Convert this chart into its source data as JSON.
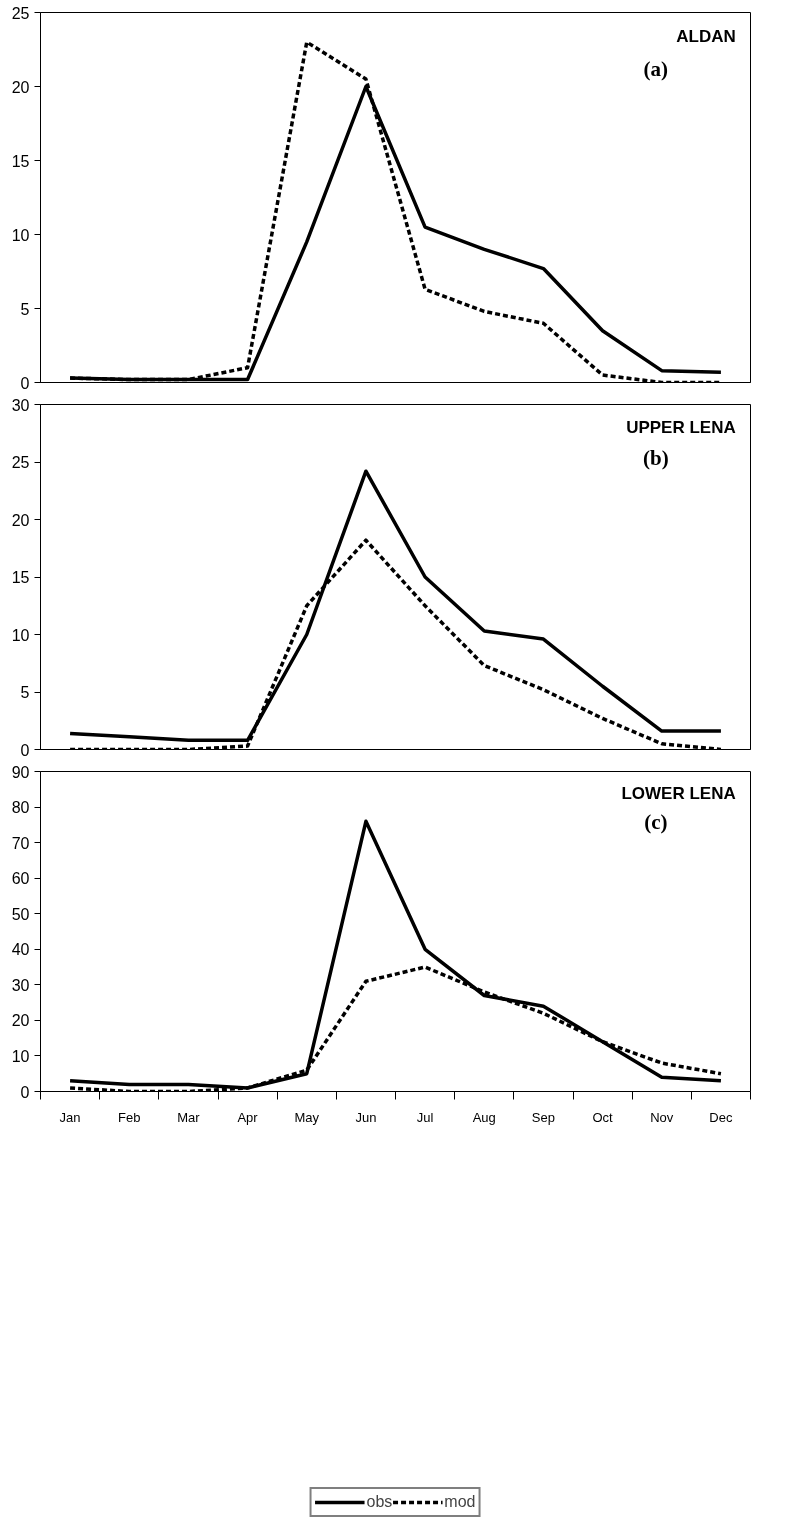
{
  "chart_data": [
    {
      "type": "line",
      "annotations": [
        "ALDAN",
        "(a)"
      ],
      "categories": [
        null,
        null,
        null,
        null,
        null,
        null,
        null,
        null,
        null,
        null,
        null,
        null
      ],
      "ylim": [
        0,
        25
      ],
      "yticks": [
        0,
        5,
        10,
        15,
        20,
        25
      ],
      "tick_labels": "y",
      "series": [
        {
          "color": "#000000",
          "line_style": "solid",
          "values": [
            0.3,
            0.2,
            0.2,
            0.2,
            9.5,
            20,
            10.5,
            9,
            7.7,
            3.5,
            0.8,
            0.7
          ]
        },
        {
          "color": "#000000",
          "line_style": "dashed",
          "values": [
            0.3,
            0.2,
            0.2,
            1,
            23,
            20.5,
            6.3,
            4.8,
            4,
            0.5,
            0,
            0
          ]
        }
      ]
    },
    {
      "type": "line",
      "annotations": [
        "UPPER LENA",
        "(b)"
      ],
      "categories": [
        null,
        null,
        null,
        null,
        null,
        null,
        null,
        null,
        null,
        null,
        null,
        null
      ],
      "ylim": [
        0,
        30
      ],
      "yticks": [
        0,
        5,
        10,
        15,
        20,
        25,
        30
      ],
      "tick_labels": "y",
      "series": [
        {
          "color": "#000000",
          "line_style": "solid",
          "values": [
            1.4,
            1.1,
            0.8,
            0.8,
            10,
            24.2,
            15,
            10.3,
            9.6,
            5.5,
            1.6,
            1.6
          ]
        },
        {
          "color": "#000000",
          "line_style": "dashed",
          "values": [
            0,
            0,
            0,
            0.3,
            12.5,
            18.2,
            12.5,
            7.3,
            5.2,
            2.7,
            0.5,
            0
          ]
        }
      ]
    },
    {
      "type": "line",
      "annotations": [
        "LOWER LENA",
        "(c)"
      ],
      "categories": [
        "Jan",
        "Feb",
        "Mar",
        "Apr",
        "May",
        "Jun",
        "Jul",
        "Aug",
        "Sep",
        "Oct",
        "Nov",
        "Dec"
      ],
      "ylim": [
        0,
        90
      ],
      "yticks": [
        0,
        10,
        20,
        30,
        40,
        50,
        60,
        70,
        80,
        90
      ],
      "legend": "bottom",
      "series": [
        {
          "name": "obs",
          "color": "#000000",
          "line_style": "solid",
          "values": [
            3,
            2,
            2,
            1,
            5,
            76,
            40,
            27,
            24,
            14,
            4,
            3
          ]
        },
        {
          "name": "mod",
          "color": "#000000",
          "line_style": "dashed",
          "values": [
            1,
            0,
            0,
            1,
            6,
            31,
            35,
            28,
            22,
            14,
            8,
            5
          ]
        }
      ]
    }
  ]
}
